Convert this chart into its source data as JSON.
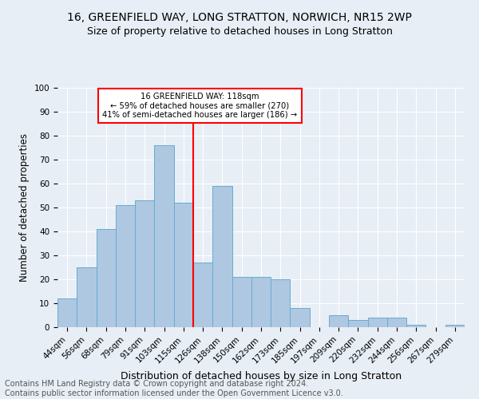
{
  "title": "16, GREENFIELD WAY, LONG STRATTON, NORWICH, NR15 2WP",
  "subtitle": "Size of property relative to detached houses in Long Stratton",
  "xlabel": "Distribution of detached houses by size in Long Stratton",
  "ylabel": "Number of detached properties",
  "footnote1": "Contains HM Land Registry data © Crown copyright and database right 2024.",
  "footnote2": "Contains public sector information licensed under the Open Government Licence v3.0.",
  "bar_labels": [
    "44sqm",
    "56sqm",
    "68sqm",
    "79sqm",
    "91sqm",
    "103sqm",
    "115sqm",
    "126sqm",
    "138sqm",
    "150sqm",
    "162sqm",
    "173sqm",
    "185sqm",
    "197sqm",
    "209sqm",
    "220sqm",
    "232sqm",
    "244sqm",
    "256sqm",
    "267sqm",
    "279sqm"
  ],
  "bar_values": [
    12,
    25,
    41,
    51,
    53,
    76,
    52,
    27,
    59,
    21,
    21,
    20,
    8,
    0,
    5,
    3,
    4,
    4,
    1,
    0,
    1
  ],
  "bar_color": "#adc8e0",
  "bar_edge_color": "#6aaad4",
  "vline_x": 6.5,
  "vline_color": "red",
  "annotation_title": "16 GREENFIELD WAY: 118sqm",
  "annotation_line1": "← 59% of detached houses are smaller (270)",
  "annotation_line2": "41% of semi-detached houses are larger (186) →",
  "annotation_box_color": "red",
  "annotation_text_color": "black",
  "ylim": [
    0,
    100
  ],
  "yticks": [
    0,
    10,
    20,
    30,
    40,
    50,
    60,
    70,
    80,
    90,
    100
  ],
  "bg_color": "#e8eef5",
  "plot_bg_color": "#e8eef5",
  "grid_color": "white",
  "title_fontsize": 10,
  "subtitle_fontsize": 9,
  "xlabel_fontsize": 9,
  "ylabel_fontsize": 8.5,
  "footnote_fontsize": 7,
  "tick_fontsize": 7.5
}
